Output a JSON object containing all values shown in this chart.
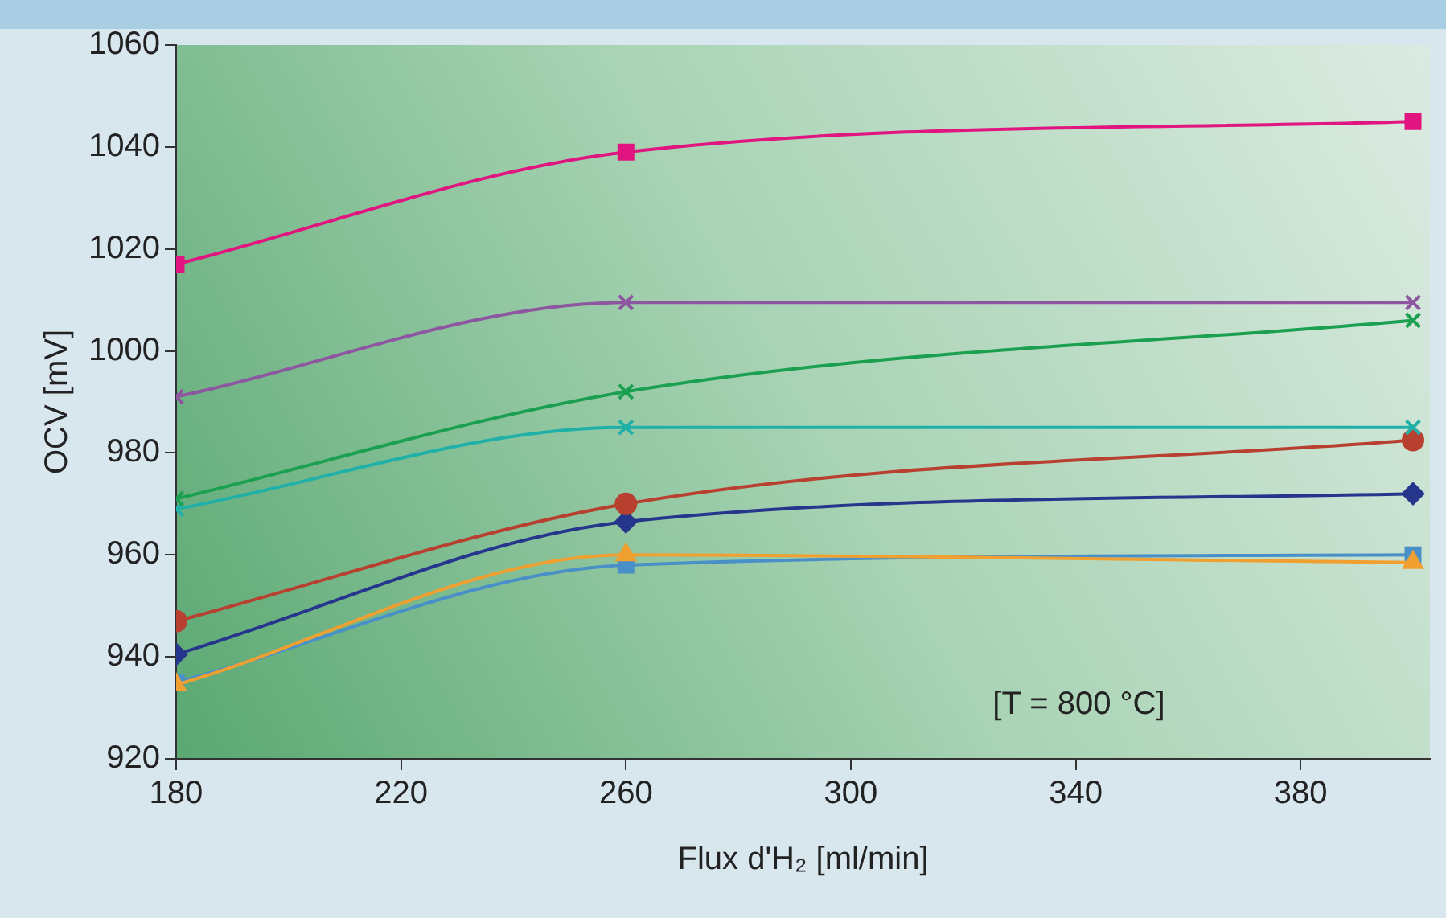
{
  "chart_data": {
    "type": "line",
    "xlabel": "Flux d'H₂ [ml/min]",
    "ylabel": "OCV [mV]",
    "xlim": [
      180,
      403
    ],
    "xticks": [
      180,
      220,
      260,
      300,
      340,
      380
    ],
    "ylim": [
      920,
      1060
    ],
    "yticks": [
      920,
      940,
      960,
      980,
      1000,
      1020,
      1040,
      1060
    ],
    "grid": false,
    "legend": false,
    "line_style": "solid",
    "annotations": [
      "[T = 800 °C]"
    ],
    "x": [
      180,
      260,
      400
    ],
    "series": [
      {
        "color": "#e0157f",
        "marker": "square",
        "values": [
          1017,
          1039,
          1045
        ]
      },
      {
        "color": "#8e55a0",
        "marker": "cross",
        "values": [
          991,
          1009.5,
          1009.5
        ]
      },
      {
        "color": "#1aa050",
        "marker": "cross",
        "values": [
          971,
          992,
          1006
        ]
      },
      {
        "color": "#20b0a8",
        "marker": "cross",
        "values": [
          969,
          985,
          985
        ]
      },
      {
        "color": "#b84030",
        "marker": "circle",
        "values": [
          947,
          970,
          982.5
        ]
      },
      {
        "color": "#26368c",
        "marker": "diamond",
        "values": [
          940.5,
          966.5,
          972
        ]
      },
      {
        "color": "#f0a030",
        "marker": "triangle",
        "values": [
          934.5,
          960,
          958.5
        ]
      },
      {
        "color": "#4a90c8",
        "marker": "square",
        "values": [
          935,
          958,
          960
        ]
      }
    ]
  }
}
